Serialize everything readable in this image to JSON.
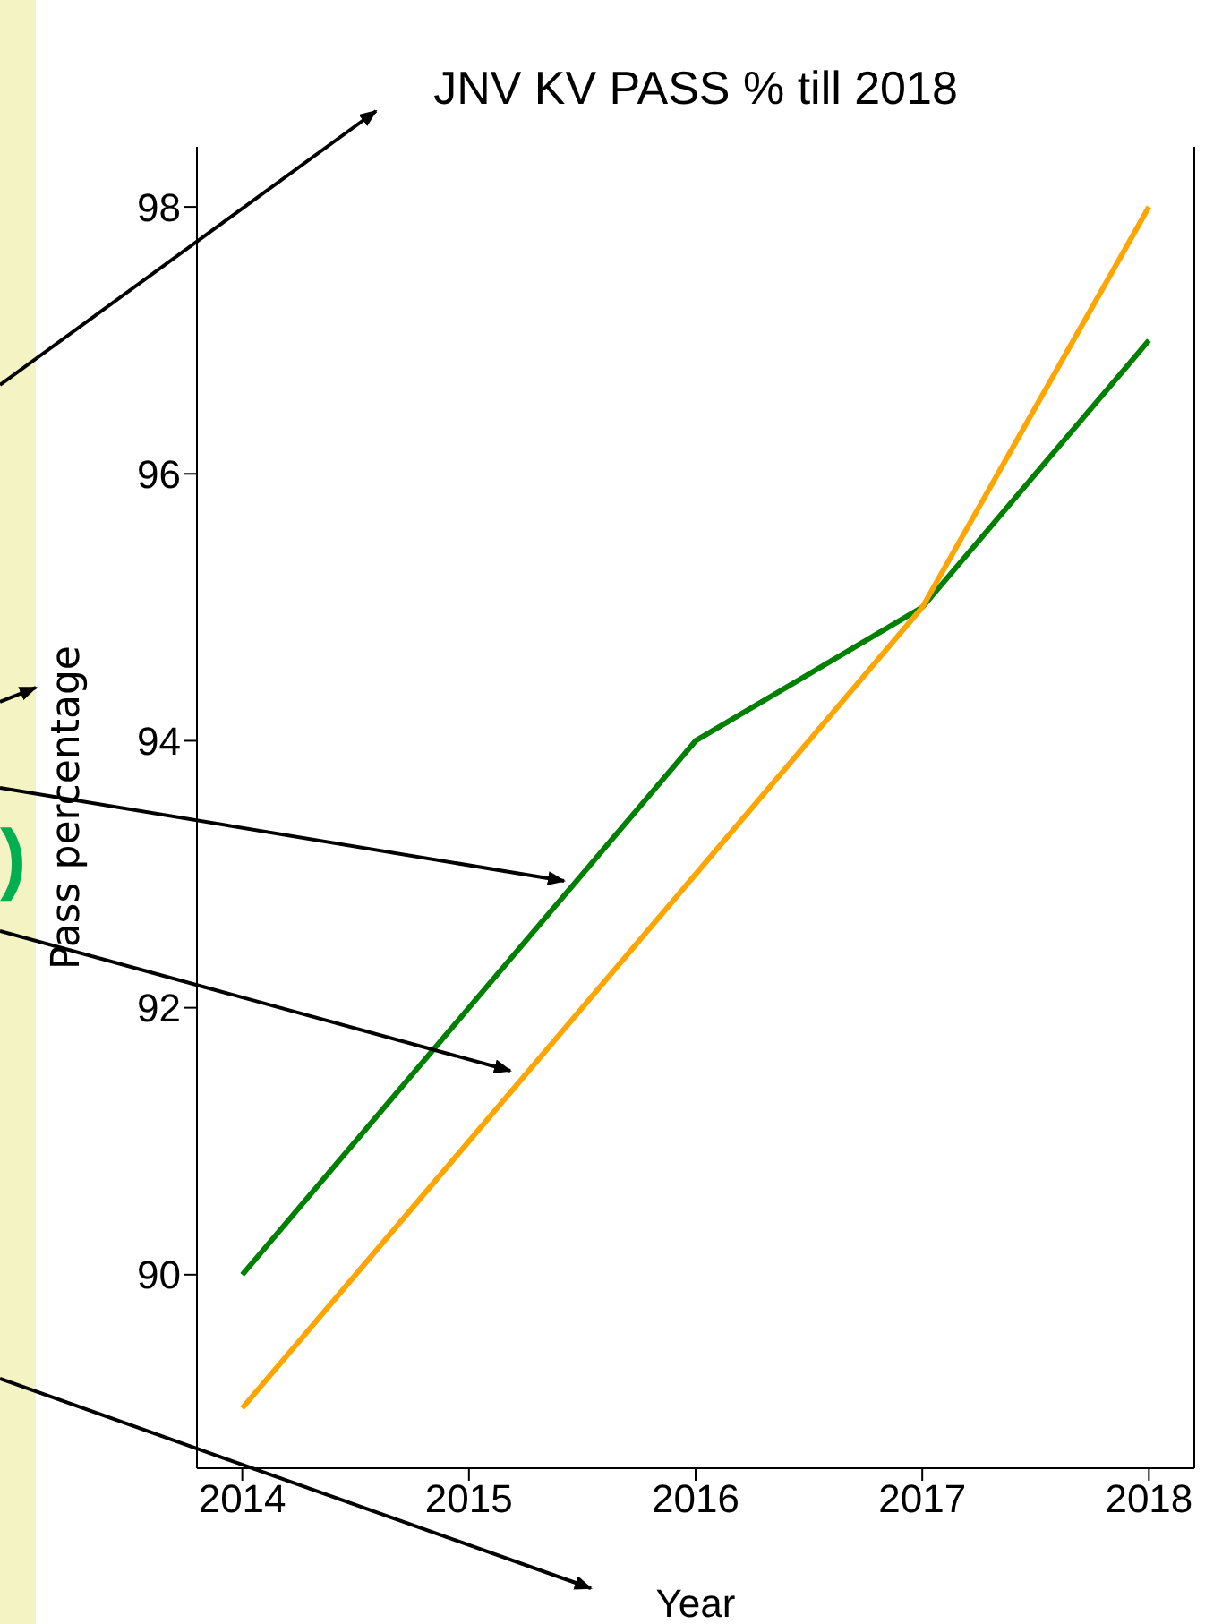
{
  "chart_data": {
    "type": "line",
    "title": "JNV KV PASS % till 2018",
    "xlabel": "Year",
    "ylabel": "Pass percentage",
    "x": [
      2014,
      2015,
      2016,
      2017,
      2018
    ],
    "series": [
      {
        "color": "#008000",
        "values": [
          90,
          92,
          94,
          95,
          97
        ]
      },
      {
        "color": "#ffa500",
        "values": [
          89,
          91,
          93,
          95,
          98
        ]
      }
    ],
    "xlim": [
      2013.8,
      2018.2
    ],
    "xticks": [
      2014,
      2015,
      2016,
      2017,
      2018
    ],
    "ylim": [
      88.55,
      98.45
    ],
    "yticks": [
      90,
      92,
      94,
      96,
      98
    ],
    "grid": false,
    "marker": "none",
    "line_style": "solid",
    "annotations": [
      ")"
    ]
  }
}
